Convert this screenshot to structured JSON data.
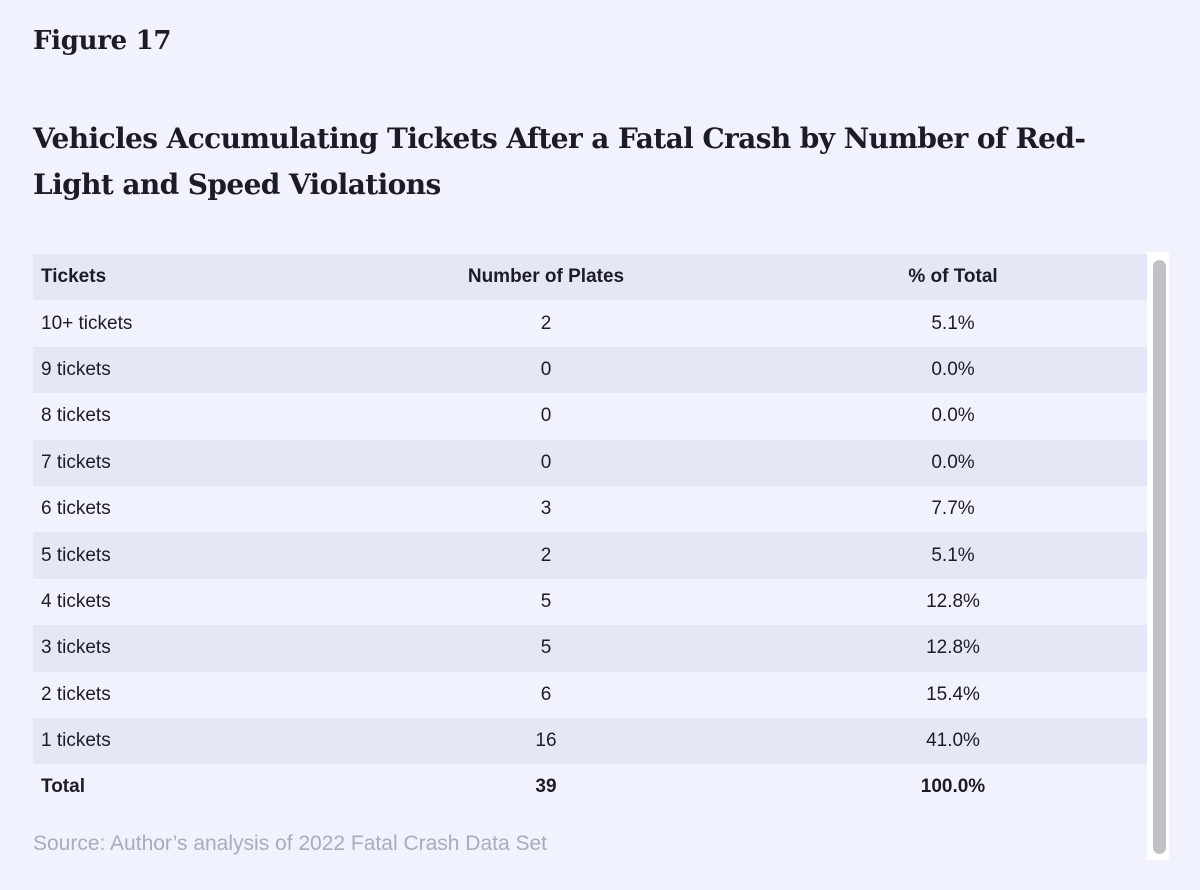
{
  "figure_label": "Figure 17",
  "title": "Vehicles Accumulating Tickets After a Fatal Crash by Number of Red-Light and Speed Violations",
  "source": "Source: Author’s analysis of 2022 Fatal Crash Data Set",
  "chart_data": {
    "type": "table",
    "title": "Vehicles Accumulating Tickets After a Fatal Crash by Number of Red-Light and Speed Violations",
    "columns": [
      "Tickets",
      "Number of Plates",
      "% of Total"
    ],
    "rows": [
      [
        "10+ tickets",
        "2",
        "5.1%"
      ],
      [
        "9 tickets",
        "0",
        "0.0%"
      ],
      [
        "8 tickets",
        "0",
        "0.0%"
      ],
      [
        "7 tickets",
        "0",
        "0.0%"
      ],
      [
        "6 tickets",
        "3",
        "7.7%"
      ],
      [
        "5 tickets",
        "2",
        "5.1%"
      ],
      [
        "4 tickets",
        "5",
        "12.8%"
      ],
      [
        "3 tickets",
        "5",
        "12.8%"
      ],
      [
        "2 tickets",
        "6",
        "15.4%"
      ],
      [
        "1 tickets",
        "16",
        "41.0%"
      ]
    ],
    "total": [
      "Total",
      "39",
      "100.0%"
    ],
    "colors": {
      "background": "#f0f2fd",
      "shaded_row": "#e4e7f6",
      "source_text": "#a9acbd"
    }
  }
}
